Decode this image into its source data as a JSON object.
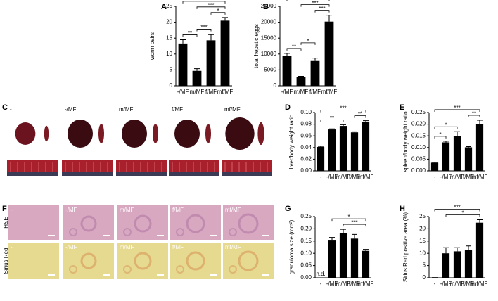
{
  "chart_data": [
    {
      "panel": "A",
      "type": "bar",
      "ylabel": "worm pairs",
      "categories": [
        "-/MF",
        "m/MF",
        "f/MF",
        "mf/MF"
      ],
      "values": [
        13.3,
        4.7,
        14.3,
        20.5
      ],
      "errors": [
        1.2,
        0.7,
        1.8,
        1.0
      ],
      "color": "#000000",
      "ylim": [
        0,
        25
      ],
      "yticks": [
        0,
        5,
        10,
        15,
        20,
        25
      ],
      "significance": [
        {
          "label": "**",
          "from": "-/MF",
          "to": "m/MF"
        },
        {
          "label": "***",
          "from": "m/MF",
          "to": "f/MF"
        },
        {
          "label": "*",
          "from": "f/MF",
          "to": "mf/MF"
        },
        {
          "label": "***",
          "from": "m/MF",
          "to": "mf/MF"
        },
        {
          "label": "***",
          "from": "-/MF",
          "to": "mf/MF"
        }
      ]
    },
    {
      "panel": "B",
      "type": "bar",
      "ylabel": "total hepatic eggs",
      "categories": [
        "-/MF",
        "m/MF",
        "f/MF",
        "mf/MF"
      ],
      "values": [
        9500,
        2800,
        7800,
        20200
      ],
      "errors": [
        700,
        200,
        900,
        2000
      ],
      "color": "#000000",
      "ylim": [
        0,
        25000
      ],
      "yticks": [
        0,
        5000,
        10000,
        15000,
        20000,
        25000
      ],
      "significance": [
        {
          "label": "**",
          "from": "-/MF",
          "to": "m/MF"
        },
        {
          "label": "*",
          "from": "m/MF",
          "to": "f/MF"
        },
        {
          "label": "***",
          "from": "f/MF",
          "to": "mf/MF"
        },
        {
          "label": "***",
          "from": "m/MF",
          "to": "mf/MF"
        },
        {
          "label": "***",
          "from": "-/MF",
          "to": "mf/MF"
        }
      ]
    },
    {
      "panel": "D",
      "type": "bar",
      "ylabel": "liver/body weight ratio",
      "categories": [
        "-",
        "-/MF",
        "m/MF",
        "f/MF",
        "mf/MF"
      ],
      "values": [
        0.041,
        0.071,
        0.077,
        0.066,
        0.084
      ],
      "errors": [
        0.001,
        0.001,
        0.002,
        0.001,
        0.002
      ],
      "color": "#000000",
      "ylim": [
        0,
        0.1
      ],
      "yticks": [
        {
          "value": 0,
          "label": "0.00"
        },
        {
          "value": 0.02,
          "label": "0.02"
        },
        {
          "value": 0.04,
          "label": "0.04"
        },
        {
          "value": 0.06,
          "label": "0.06"
        },
        {
          "value": 0.08,
          "label": "0.08"
        },
        {
          "value": 0.1,
          "label": "0.10"
        }
      ],
      "significance": [
        {
          "label": "**",
          "from": "-",
          "to": "m/MF"
        },
        {
          "label": "**",
          "from": "f/MF",
          "to": "mf/MF"
        },
        {
          "label": "***",
          "from": "-",
          "to": "mf/MF"
        }
      ]
    },
    {
      "panel": "E",
      "type": "bar",
      "ylabel": "spleen/body weight ratio",
      "categories": [
        "-",
        "-/MF",
        "m/MF",
        "f/MF",
        "mf/MF"
      ],
      "values": [
        0.0035,
        0.0122,
        0.015,
        0.0101,
        0.02
      ],
      "errors": [
        0.0002,
        0.0005,
        0.0018,
        0.0003,
        0.0017
      ],
      "color": "#000000",
      "ylim": [
        0,
        0.025
      ],
      "yticks": [
        {
          "value": 0,
          "label": "0.000"
        },
        {
          "value": 0.005,
          "label": "0.005"
        },
        {
          "value": 0.01,
          "label": "0.010"
        },
        {
          "value": 0.015,
          "label": "0.015"
        },
        {
          "value": 0.02,
          "label": "0.020"
        },
        {
          "value": 0.025,
          "label": "0.025"
        }
      ],
      "significance": [
        {
          "label": "*",
          "from": "-",
          "to": "-/MF"
        },
        {
          "label": "*",
          "from": "-",
          "to": "m/MF"
        },
        {
          "label": "**",
          "from": "f/MF",
          "to": "mf/MF"
        },
        {
          "label": "***",
          "from": "-",
          "to": "mf/MF"
        }
      ]
    },
    {
      "panel": "G",
      "type": "bar",
      "ylabel": "granuloma size (mm²)",
      "categories": [
        "-",
        "-/MF",
        "m/MF",
        "f/MF",
        "mf/MF"
      ],
      "values": [
        null,
        0.155,
        0.183,
        0.16,
        0.11
      ],
      "value_labels": [
        "n.d.",
        null,
        null,
        null,
        null
      ],
      "errors": [
        null,
        0.01,
        0.015,
        0.017,
        0.006
      ],
      "color": "#000000",
      "ylim": [
        0,
        0.25
      ],
      "yticks": [
        {
          "value": 0,
          "label": "0.00"
        },
        {
          "value": 0.05,
          "label": "0.05"
        },
        {
          "value": 0.1,
          "label": "0.10"
        },
        {
          "value": 0.15,
          "label": "0.15"
        },
        {
          "value": 0.2,
          "label": "0.20"
        },
        {
          "value": 0.25,
          "label": "0.25"
        }
      ],
      "significance": [
        {
          "label": "***",
          "from": "m/MF",
          "to": "mf/MF"
        },
        {
          "label": "*",
          "from": "-/MF",
          "to": "mf/MF"
        }
      ]
    },
    {
      "panel": "H",
      "type": "bar",
      "ylabel": "Sirius Red positive area (%)",
      "categories": [
        "-",
        "-/MF",
        "m/MF",
        "f/MF",
        "mf/MF"
      ],
      "values": [
        0.1,
        10,
        10.8,
        11.3,
        22.5
      ],
      "errors": [
        0,
        2.3,
        1.5,
        1.7,
        1.2
      ],
      "color": "#000000",
      "ylim": [
        0,
        25
      ],
      "yticks": [
        0,
        5,
        10,
        15,
        20,
        25
      ],
      "significance": [
        {
          "label": "*",
          "from": "-/MF",
          "to": "mf/MF"
        },
        {
          "label": "***",
          "from": "-",
          "to": "mf/MF"
        }
      ]
    }
  ],
  "photo_panels": [
    {
      "panel": "C",
      "columns": [
        "-",
        "-/MF",
        "m/MF",
        "f/MF",
        "mf/MF"
      ]
    },
    {
      "panel": "F",
      "rows": [
        "H&E",
        "Sirius Red"
      ],
      "columns": [
        "-",
        "-/MF",
        "m/MF",
        "f/MF",
        "mf/MF"
      ]
    }
  ]
}
